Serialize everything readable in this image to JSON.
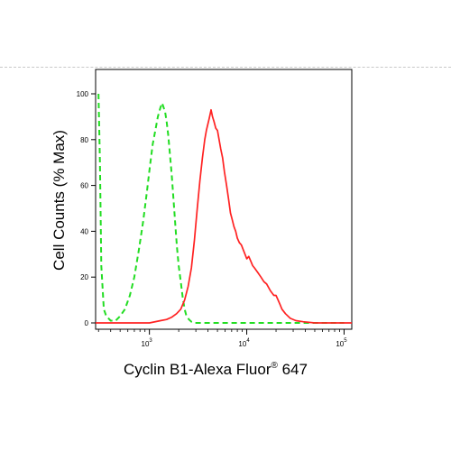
{
  "chart_data": {
    "type": "line",
    "title": "",
    "xlabel": {
      "main": "Cyclin B1-Alexa Fluor",
      "mark": "®",
      "suffix": " 647"
    },
    "ylabel": "Cell Counts (% Max)",
    "x_scale": "log",
    "xlim": [
      280,
      120000
    ],
    "ylim": [
      0,
      100
    ],
    "grid": false,
    "legend": "none",
    "y_ticks": [
      {
        "value": 0,
        "label": "0"
      },
      {
        "value": 20,
        "label": "20"
      },
      {
        "value": 40,
        "label": "40"
      },
      {
        "value": 60,
        "label": "60"
      },
      {
        "value": 80,
        "label": "80"
      },
      {
        "value": 100,
        "label": "100"
      }
    ],
    "x_ticks": [
      {
        "value": 1000,
        "base": "10",
        "exp": "3"
      },
      {
        "value": 10000,
        "base": "10",
        "exp": "4"
      },
      {
        "value": 100000,
        "base": "10",
        "exp": "5"
      }
    ],
    "series": [
      {
        "color": "#22dd22",
        "dash": true,
        "x": [
          300,
          310,
          320,
          340,
          360,
          400,
          450,
          500,
          560,
          630,
          700,
          780,
          860,
          940,
          1010,
          1080,
          1150,
          1220,
          1300,
          1350,
          1400,
          1450,
          1500,
          1560,
          1620,
          1700,
          1780,
          1850,
          1920,
          2000,
          2100,
          2200,
          2300,
          2400,
          2550,
          2700,
          2900,
          3200,
          3700,
          4500,
          6000,
          10000,
          30000,
          100000
        ],
        "y": [
          100,
          70,
          25,
          6,
          3,
          1,
          1,
          3,
          6,
          12,
          20,
          32,
          44,
          57,
          68,
          78,
          84,
          90,
          94,
          96,
          94,
          92,
          88,
          82,
          74,
          64,
          52,
          42,
          33,
          25,
          18,
          11,
          6,
          3,
          1.5,
          0.5,
          0,
          0,
          0,
          0,
          0,
          0,
          0,
          0
        ]
      },
      {
        "color": "#ff2222",
        "dash": false,
        "x": [
          280,
          1000,
          1300,
          1500,
          1700,
          1900,
          2100,
          2300,
          2500,
          2700,
          2900,
          3100,
          3300,
          3500,
          3700,
          3850,
          4000,
          4100,
          4200,
          4300,
          4450,
          4600,
          4800,
          5000,
          5200,
          5400,
          5650,
          5900,
          6200,
          6500,
          6800,
          7100,
          7400,
          7700,
          8000,
          8400,
          8800,
          9200,
          9600,
          10000,
          10500,
          11000,
          11500,
          12000,
          13000,
          14000,
          15000,
          16000,
          17500,
          19000,
          20000,
          21000,
          22000,
          23000,
          25000,
          28000,
          32000,
          38000,
          50000,
          120000
        ],
        "y": [
          0,
          0,
          1,
          1.5,
          2.5,
          4,
          6,
          10,
          16,
          24,
          36,
          50,
          62,
          72,
          80,
          84,
          87,
          89,
          91,
          93,
          90,
          88,
          85,
          84,
          80,
          76,
          72,
          66,
          60,
          54,
          48,
          45,
          42,
          40,
          37,
          35,
          34,
          32,
          30,
          28,
          29,
          27,
          25,
          24,
          22,
          20,
          18,
          17,
          14,
          12,
          12,
          10,
          8,
          6,
          4,
          2,
          1,
          0.5,
          0,
          0
        ]
      }
    ]
  }
}
